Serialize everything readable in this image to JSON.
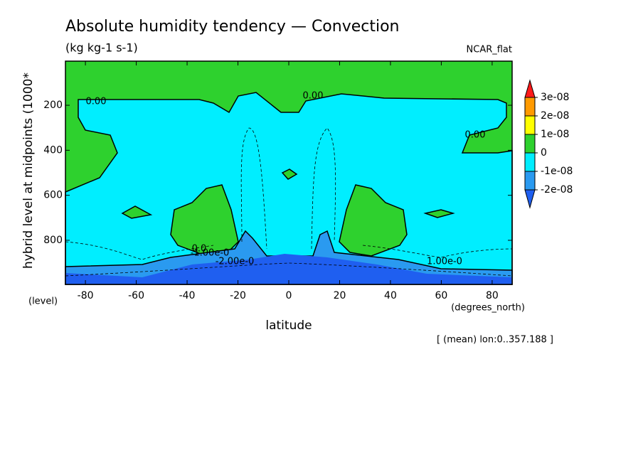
{
  "chart_data": {
    "type": "contour",
    "title": "Absolute humidity tendency — Convection",
    "subtitle": "(kg kg-1 s-1)",
    "label_right": "NCAR_flat",
    "x_label": "latitude",
    "x_units": "(degrees_north)",
    "y_label": "hybrid level at midpoints (1000*",
    "y_units": "(level)",
    "footnote": "[ (mean) lon:0..357.188 ]",
    "xlim": [
      -87.86,
      87.86
    ],
    "xticks": [
      -80,
      -60,
      -40,
      -20,
      0,
      20,
      40,
      60,
      80
    ],
    "ylim": [
      996,
      4
    ],
    "yticks": [
      200,
      400,
      600,
      800
    ],
    "colorbar": {
      "ticks": [
        {
          "value": 3e-08,
          "label": "3e-08"
        },
        {
          "value": 2e-08,
          "label": "2e-08"
        },
        {
          "value": 1e-08,
          "label": "1e-08"
        },
        0,
        {
          "value": -1e-08,
          "label": "-1e-08"
        },
        {
          "value": -2e-08,
          "label": "-2e-08"
        }
      ],
      "colors": [
        "#ff1a1a",
        "#ff9a00",
        "#ffff00",
        "#2ed12e",
        "#00eeff",
        "#2a9af0",
        "#1f5ff0"
      ]
    },
    "contour_labels": [
      "0.00",
      "0.00",
      "0.00",
      "-1.00e-0",
      "-2.00e-0",
      "1.00e-0",
      "0.0"
    ]
  }
}
